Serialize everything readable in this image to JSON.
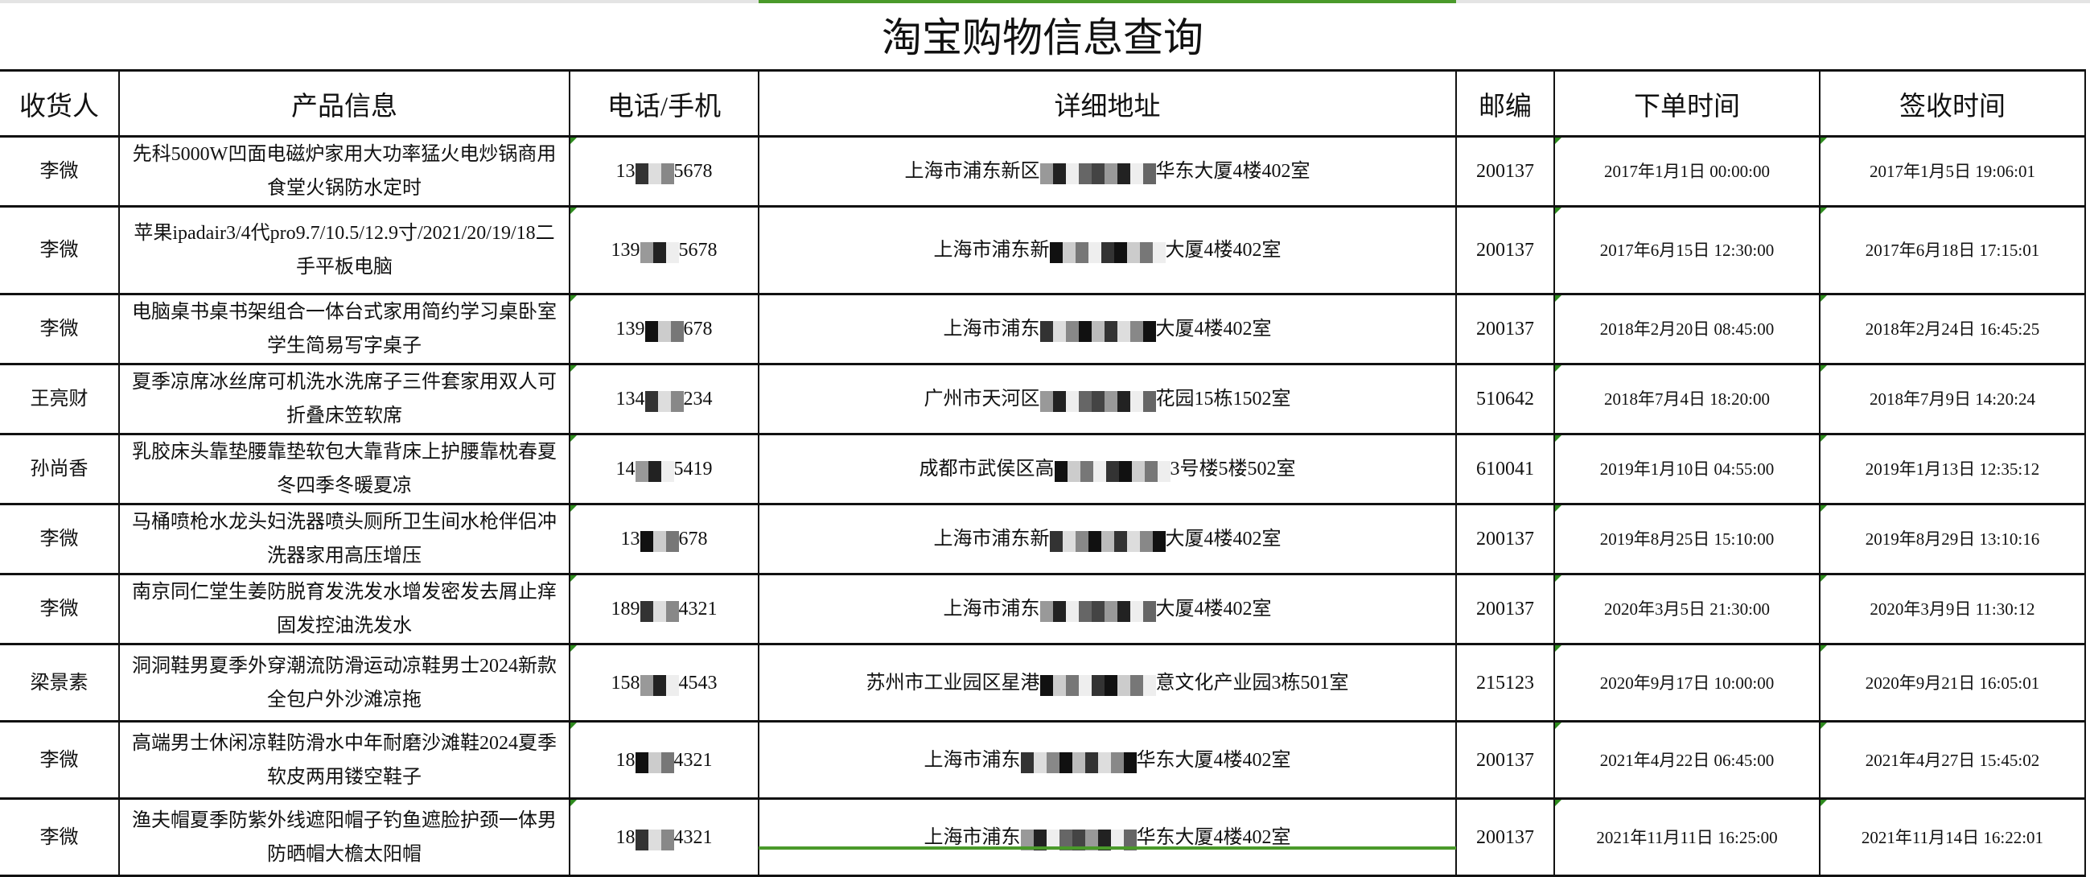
{
  "title": "淘宝购物信息查询",
  "headers": [
    "收货人",
    "产品信息",
    "电话/手机",
    "详细地址",
    "邮编",
    "下单时间",
    "签收时间"
  ],
  "accent_color": "#4a9a2a",
  "rows": [
    {
      "name": "李微",
      "product": "先科5000W凹面电磁炉家用大功率猛火电炒锅商用食堂火锅防水定时",
      "phone_prefix": "13",
      "phone_suffix": "5678",
      "addr_prefix": "上海市浦东新区",
      "addr_suffix": "华东大厦4楼402室",
      "zip": "200137",
      "order_time": "2017年1月1日 00:00:00",
      "sign_time": "2017年1月5日 19:06:01"
    },
    {
      "name": "李微",
      "product": "苹果ipadair3/4代pro9.7/10.5/12.9寸/2021/20/19/18二手平板电脑",
      "phone_prefix": "139",
      "phone_suffix": "5678",
      "addr_prefix": "上海市浦东新",
      "addr_suffix": "大厦4楼402室",
      "zip": "200137",
      "order_time": "2017年6月15日 12:30:00",
      "sign_time": "2017年6月18日 17:15:01"
    },
    {
      "name": "李微",
      "product": "电脑桌书桌书架组合一体台式家用简约学习桌卧室学生简易写字桌子",
      "phone_prefix": "139",
      "phone_suffix": "678",
      "addr_prefix": "上海市浦东",
      "addr_suffix": "大厦4楼402室",
      "zip": "200137",
      "order_time": "2018年2月20日 08:45:00",
      "sign_time": "2018年2月24日 16:45:25"
    },
    {
      "name": "王亮财",
      "product": "夏季凉席冰丝席可机洗水洗席子三件套家用双人可折叠床笠软席",
      "phone_prefix": "134",
      "phone_suffix": "234",
      "addr_prefix": "广州市天河区",
      "addr_suffix": "花园15栋1502室",
      "zip": "510642",
      "order_time": "2018年7月4日 18:20:00",
      "sign_time": "2018年7月9日 14:20:24"
    },
    {
      "name": "孙尚香",
      "product": "乳胶床头靠垫腰靠垫软包大靠背床上护腰靠枕春夏冬四季冬暖夏凉",
      "phone_prefix": "14",
      "phone_suffix": "5419",
      "addr_prefix": "成都市武侯区高",
      "addr_suffix": "3号楼5楼502室",
      "zip": "610041",
      "order_time": "2019年1月10日 04:55:00",
      "sign_time": "2019年1月13日 12:35:12"
    },
    {
      "name": "李微",
      "product": "马桶喷枪水龙头妇洗器喷头厕所卫生间水枪伴侣冲洗器家用高压增压",
      "phone_prefix": "13",
      "phone_suffix": "678",
      "addr_prefix": "上海市浦东新",
      "addr_suffix": "大厦4楼402室",
      "zip": "200137",
      "order_time": "2019年8月25日 15:10:00",
      "sign_time": "2019年8月29日 13:10:16"
    },
    {
      "name": "李微",
      "product": "南京同仁堂生姜防脱育发洗发水增发密发去屑止痒固发控油洗发水",
      "phone_prefix": "189",
      "phone_suffix": "4321",
      "addr_prefix": "上海市浦东",
      "addr_suffix": "大厦4楼402室",
      "zip": "200137",
      "order_time": "2020年3月5日 21:30:00",
      "sign_time": "2020年3月9日 11:30:12"
    },
    {
      "name": "梁景素",
      "product": "洞洞鞋男夏季外穿潮流防滑运动凉鞋男士2024新款全包户外沙滩凉拖",
      "phone_prefix": "158",
      "phone_suffix": "4543",
      "addr_prefix": "苏州市工业园区星港",
      "addr_suffix": "意文化产业园3栋501室",
      "zip": "215123",
      "order_time": "2020年9月17日 10:00:00",
      "sign_time": "2020年9月21日 16:05:01"
    },
    {
      "name": "李微",
      "product": "高端男士休闲凉鞋防滑水中年耐磨沙滩鞋2024夏季软皮两用镂空鞋子",
      "phone_prefix": "18",
      "phone_suffix": "4321",
      "addr_prefix": "上海市浦东",
      "addr_suffix": "华东大厦4楼402室",
      "zip": "200137",
      "order_time": "2021年4月22日 06:45:00",
      "sign_time": "2021年4月27日 15:45:02"
    },
    {
      "name": "李微",
      "product": "渔夫帽夏季防紫外线遮阳帽子钓鱼遮脸护颈一体男防晒帽大檐太阳帽",
      "phone_prefix": "18",
      "phone_suffix": "4321",
      "addr_prefix": "上海市浦东",
      "addr_suffix": "华东大厦4楼402室",
      "zip": "200137",
      "order_time": "2021年11月11日 16:25:00",
      "sign_time": "2021年11月14日 16:22:01"
    }
  ]
}
